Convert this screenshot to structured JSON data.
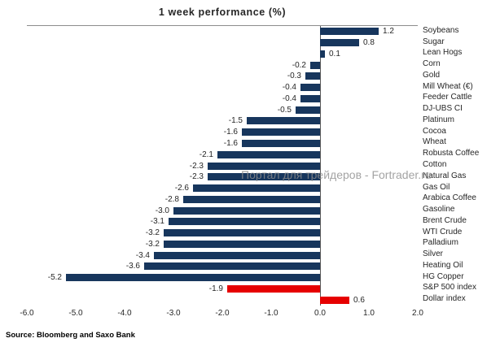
{
  "title": "1 week performance (%)",
  "source": "Source: Bloomberg and Saxo Bank",
  "watermark": "Портал для трейдеров - Fortrader.ru",
  "chart_data": {
    "type": "bar",
    "orientation": "horizontal",
    "title": "1 week performance (%)",
    "xlabel": "",
    "ylabel": "",
    "xlim": [
      -6.0,
      2.0
    ],
    "x_ticks": [
      "-6.0",
      "-5.0",
      "-4.0",
      "-3.0",
      "-2.0",
      "-1.0",
      "0.0",
      "1.0",
      "2.0"
    ],
    "grid": false,
    "legend": "none",
    "default_color": "#17365D",
    "highlight_color": "#E60000",
    "categories": [
      "Soybeans",
      "Sugar",
      "Lean Hogs",
      "Corn",
      "Gold",
      "Mill Wheat (€)",
      "Feeder Cattle",
      "DJ-UBS CI",
      "Platinum",
      "Cocoa",
      "Wheat",
      "Robusta Coffee",
      "Cotton",
      "Natural Gas",
      "Gas Oil",
      "Arabica Coffee",
      "Gasoline",
      "Brent Crude",
      "WTI Crude",
      "Palladium",
      "Silver",
      "Heating Oil",
      "HG Copper",
      "S&P 500 index",
      "Dollar index"
    ],
    "values": [
      1.2,
      0.8,
      0.1,
      -0.2,
      -0.3,
      -0.4,
      -0.4,
      -0.5,
      -1.5,
      -1.6,
      -1.6,
      -2.1,
      -2.3,
      -2.3,
      -2.6,
      -2.8,
      -3.0,
      -3.1,
      -3.2,
      -3.2,
      -3.4,
      -3.6,
      -5.2,
      -1.9,
      0.6
    ],
    "colors": [
      "#17365D",
      "#17365D",
      "#17365D",
      "#17365D",
      "#17365D",
      "#17365D",
      "#17365D",
      "#17365D",
      "#17365D",
      "#17365D",
      "#17365D",
      "#17365D",
      "#17365D",
      "#17365D",
      "#17365D",
      "#17365D",
      "#17365D",
      "#17365D",
      "#17365D",
      "#17365D",
      "#17365D",
      "#17365D",
      "#17365D",
      "#E60000",
      "#E60000"
    ]
  }
}
